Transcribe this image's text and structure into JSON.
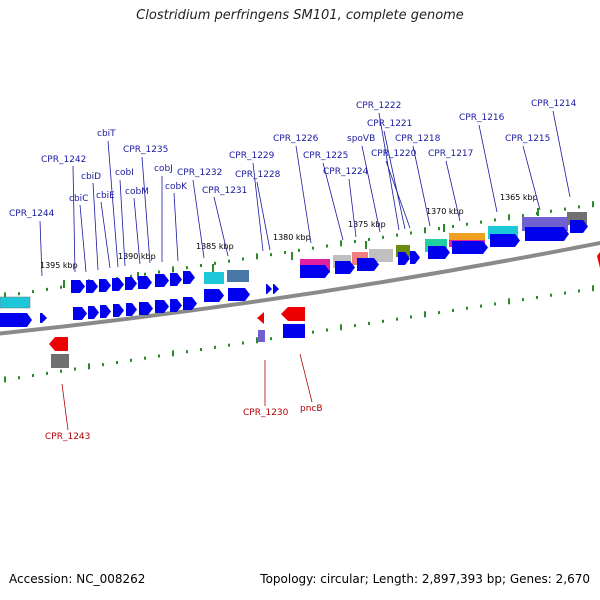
{
  "header": {
    "title": "Clostridium perfringens SM101, complete genome"
  },
  "footer": {
    "accession_label": "Accession:",
    "accession": "NC_008262",
    "topology_label": "Topology:",
    "topology": "circular",
    "length_label": "Length:",
    "length": "2,897,393 bp",
    "genes_label": "Genes:",
    "genes": "2,670"
  },
  "scale_ticks": [
    "1395 kbp",
    "1390 kbp",
    "1385 kbp",
    "1380 kbp",
    "1375 kbp",
    "1370 kbp",
    "1365 kbp"
  ],
  "forward_labels": [
    "CPR_1244",
    "CPR_1242",
    "cbiC",
    "cbiD",
    "cbiE",
    "cbiT",
    "cobI",
    "cobM",
    "CPR_1235",
    "cobJ",
    "cobK",
    "CPR_1232",
    "CPR_1231",
    "CPR_1229",
    "CPR_1228",
    "CPR_1226",
    "CPR_1225",
    "CPR_1224",
    "spoVB",
    "CPR_1222",
    "CPR_1221",
    "CPR_1220",
    "CPR_1218",
    "CPR_1217",
    "CPR_1216",
    "CPR_1215",
    "CPR_1214"
  ],
  "reverse_labels": [
    "CPR_1243",
    "CPR_1230",
    "pncB"
  ],
  "colors": {
    "forward_cds": "#0000ee",
    "reverse_cds": "#ee0000",
    "label_forward": "#1a1aa0",
    "label_reverse": "#b00000",
    "backbone": "#909090",
    "tick": "#2a8a2a",
    "cyan_feature": "#1cc8d8",
    "magenta_feature": "#e020a0",
    "orange_feature": "#f0a020",
    "purple_feature": "#7060d0",
    "gray_feature": "#707070",
    "olive_feature": "#6a8a10",
    "teal_feature": "#20d0a0",
    "salmon_feature": "#f08080",
    "silver_feature": "#c0c0c0",
    "steel_feature": "#4878a8"
  }
}
